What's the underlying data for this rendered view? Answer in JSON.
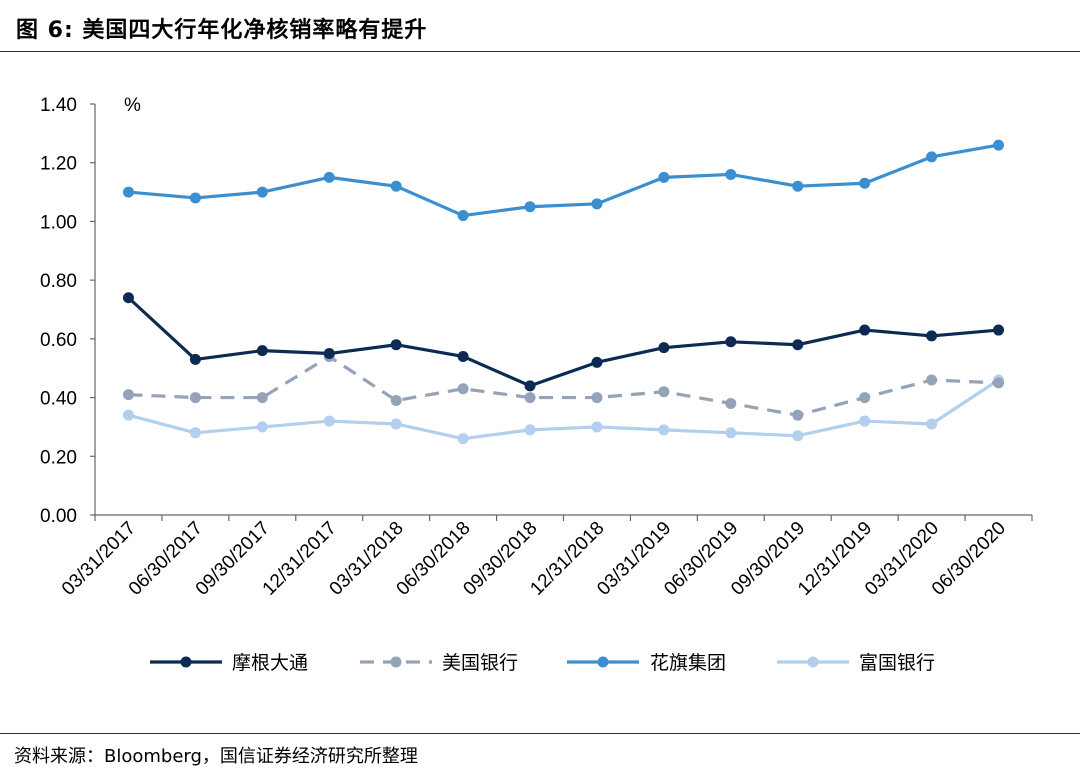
{
  "header": {
    "title": "图 6:  美国四大行年化净核销率略有提升"
  },
  "footer": {
    "source": "资料来源：Bloomberg，国信证券经济研究所整理"
  },
  "chart_data": {
    "type": "line",
    "title": "美国四大行年化净核销率略有提升",
    "ylabel": "%",
    "xlabel": "",
    "ylim": [
      0,
      1.4
    ],
    "yticks": [
      "0.00",
      "0.20",
      "0.40",
      "0.60",
      "0.80",
      "1.00",
      "1.20",
      "1.40"
    ],
    "grid": false,
    "legend_position": "bottom",
    "categories": [
      "03/31/2017",
      "06/30/2017",
      "09/30/2017",
      "12/31/2017",
      "03/31/2018",
      "06/30/2018",
      "09/30/2018",
      "12/31/2018",
      "03/31/2019",
      "06/30/2019",
      "09/30/2019",
      "12/31/2019",
      "03/31/2020",
      "06/30/2020"
    ],
    "series": [
      {
        "name": "摩根大通",
        "color": "#0d2a52",
        "dash": false,
        "values": [
          0.74,
          0.53,
          0.56,
          0.55,
          0.58,
          0.54,
          0.44,
          0.52,
          0.57,
          0.59,
          0.58,
          0.63,
          0.61,
          0.63
        ]
      },
      {
        "name": "美国银行",
        "color": "#94a3b8",
        "dash": true,
        "values": [
          0.41,
          0.4,
          0.4,
          0.54,
          0.39,
          0.43,
          0.4,
          0.4,
          0.42,
          0.38,
          0.34,
          0.4,
          0.46,
          0.45
        ]
      },
      {
        "name": "花旗集团",
        "color": "#3b8fd0",
        "dash": false,
        "values": [
          1.1,
          1.08,
          1.1,
          1.15,
          1.12,
          1.02,
          1.05,
          1.06,
          1.15,
          1.16,
          1.12,
          1.13,
          1.22,
          1.26
        ]
      },
      {
        "name": "富国银行",
        "color": "#b2cfee",
        "dash": false,
        "values": [
          0.34,
          0.28,
          0.3,
          0.32,
          0.31,
          0.26,
          0.29,
          0.3,
          0.29,
          0.28,
          0.27,
          0.32,
          0.31,
          0.46
        ]
      }
    ]
  }
}
